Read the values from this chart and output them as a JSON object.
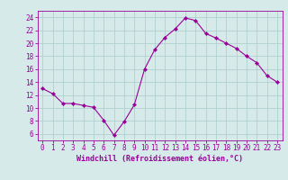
{
  "x": [
    0,
    1,
    2,
    3,
    4,
    5,
    6,
    7,
    8,
    9,
    10,
    11,
    12,
    13,
    14,
    15,
    16,
    17,
    18,
    19,
    20,
    21,
    22,
    23
  ],
  "y": [
    13.0,
    12.2,
    10.7,
    10.7,
    10.4,
    10.1,
    8.1,
    5.8,
    7.9,
    10.5,
    16.0,
    19.0,
    20.9,
    22.2,
    23.9,
    23.5,
    21.5,
    20.8,
    20.0,
    19.2,
    18.0,
    17.0,
    15.0,
    14.0
  ],
  "line_color": "#990099",
  "marker": "D",
  "marker_size": 2.2,
  "bg_color": "#d6eaea",
  "grid_color": "#b0d0d0",
  "xlabel": "Windchill (Refroidissement éolien,°C)",
  "xlabel_color": "#990099",
  "tick_color": "#990099",
  "ylim": [
    5,
    25
  ],
  "xlim": [
    -0.5,
    23.5
  ],
  "yticks": [
    6,
    8,
    10,
    12,
    14,
    16,
    18,
    20,
    22,
    24
  ],
  "xticks": [
    0,
    1,
    2,
    3,
    4,
    5,
    6,
    7,
    8,
    9,
    10,
    11,
    12,
    13,
    14,
    15,
    16,
    17,
    18,
    19,
    20,
    21,
    22,
    23
  ],
  "tick_fontsize": 5.5,
  "xlabel_fontsize": 6.0
}
